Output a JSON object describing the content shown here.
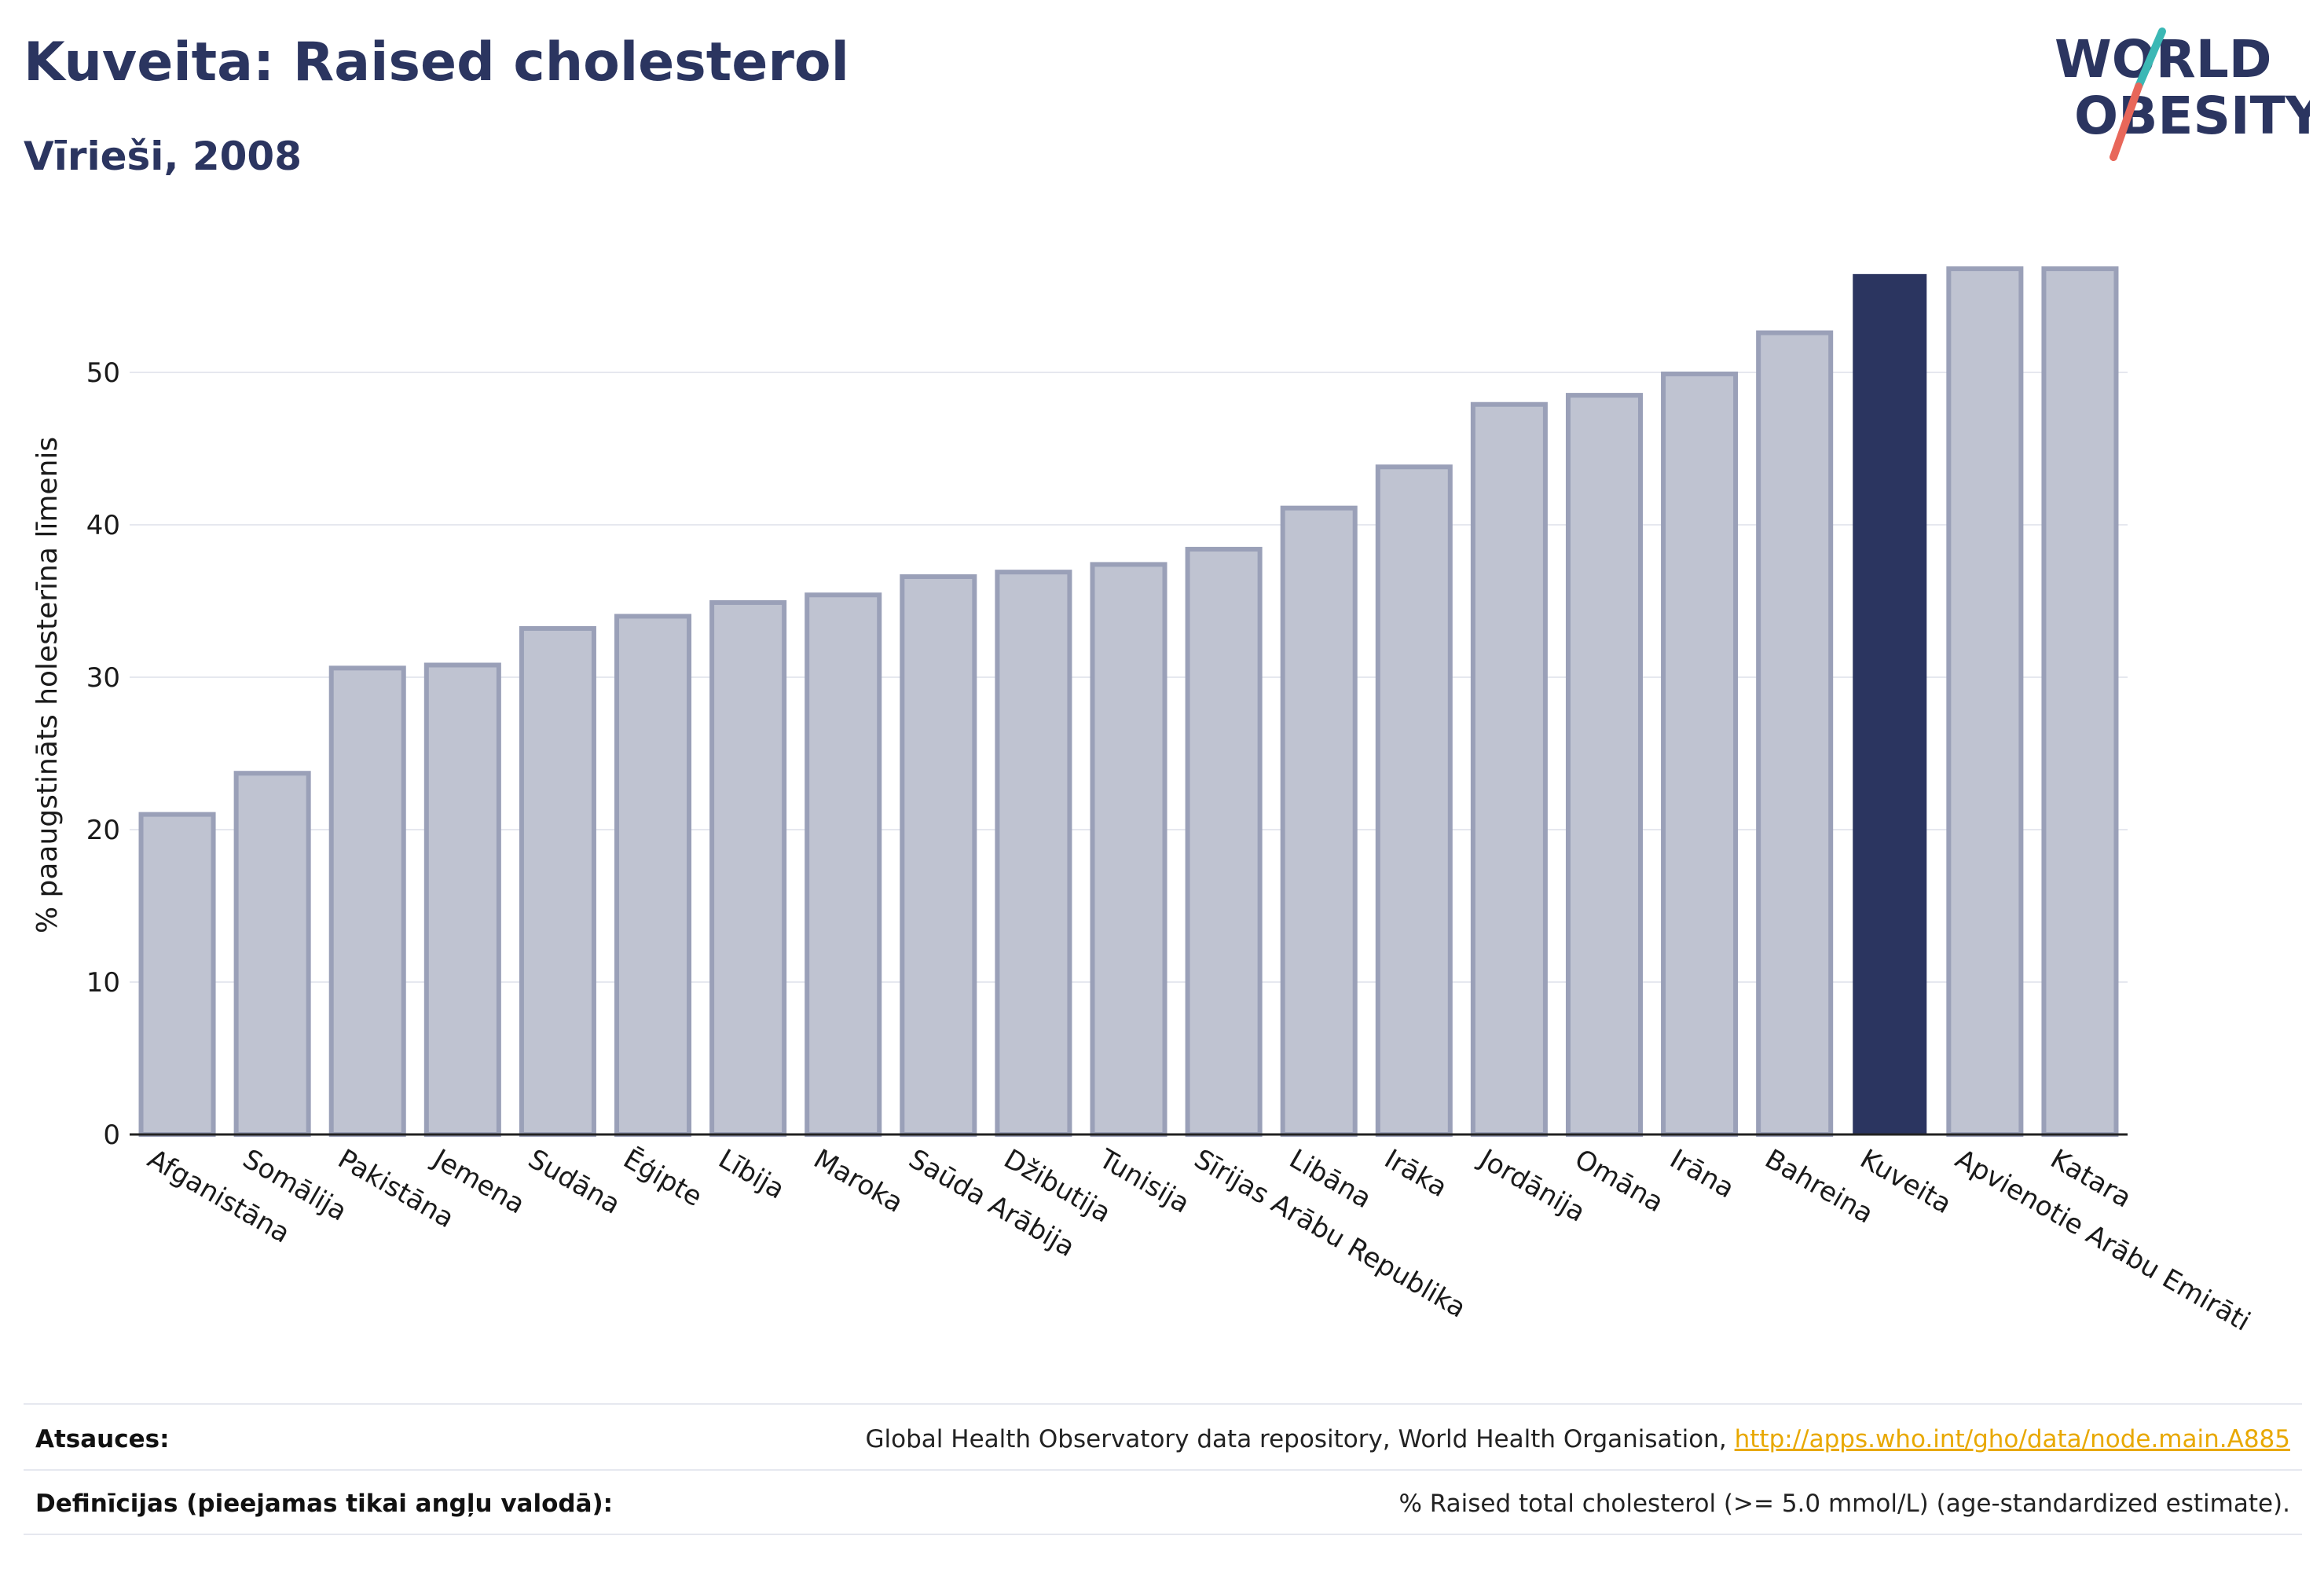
{
  "header": {
    "title": "Kuveita: Raised cholesterol",
    "subtitle": "Vīrieši, 2008"
  },
  "logo": {
    "line1": "WORLD",
    "line2": "OBESITY",
    "colors": {
      "text": "#2b3560",
      "slash_top": "#3bb8b5",
      "slash_bottom": "#e8675a"
    }
  },
  "colors": {
    "bar_default_fill": "#bfc3d1",
    "bar_default_stroke": "#9aa0b8",
    "bar_highlight": "#2b3560",
    "grid": "#e6e8ef",
    "axis": "#222222"
  },
  "chart_data": {
    "type": "bar",
    "ylabel": "% paaugstināts holesterīna līmenis",
    "xlabel": "",
    "ylim": [
      0,
      60
    ],
    "yticks": [
      0,
      10,
      20,
      30,
      40,
      50
    ],
    "grid": true,
    "highlight": "Kuveita",
    "categories": [
      "Afganistāna",
      "Somālija",
      "Pakistāna",
      "Jemena",
      "Sudāna",
      "Ēģipte",
      "Lībija",
      "Maroka",
      "Saūda Arābija",
      "Džibutija",
      "Tunisija",
      "Sīrijas Arābu Republika",
      "Libāna",
      "Irāka",
      "Jordānija",
      "Omāna",
      "Irāna",
      "Bahreina",
      "Kuveita",
      "Apvienotie Arābu Emirāti",
      "Katara"
    ],
    "values": [
      21.0,
      23.7,
      30.6,
      30.8,
      33.2,
      34.0,
      34.9,
      35.4,
      36.6,
      36.9,
      37.4,
      38.4,
      41.1,
      43.8,
      47.9,
      48.5,
      49.9,
      52.6,
      56.4,
      56.8,
      56.8
    ]
  },
  "footer": {
    "sources_label": "Atsauces:",
    "sources_text": "Global Health Observatory data repository, World Health Organisation, ",
    "sources_link": "http://apps.who.int/gho/data/node.main.A885",
    "definitions_label": "Definīcijas (pieejamas tikai angļu valodā):",
    "definitions_text": "% Raised total cholesterol (>= 5.0 mmol/L) (age-standardized estimate)."
  }
}
